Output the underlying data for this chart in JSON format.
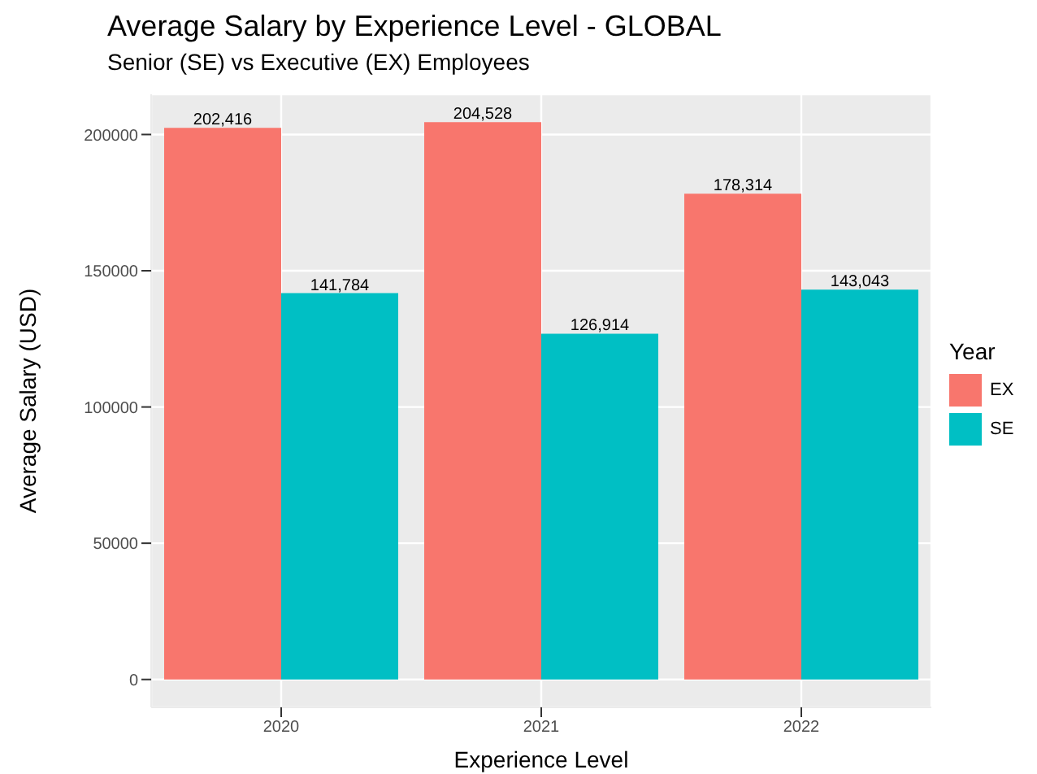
{
  "chart_data": {
    "type": "bar",
    "title": "Average Salary by Experience Level - GLOBAL",
    "subtitle": "Senior (SE) vs Executive (EX) Employees",
    "xlabel": "Experience Level",
    "ylabel": "Average Salary (USD)",
    "legend_title": "Year",
    "categories": [
      "2020",
      "2021",
      "2022"
    ],
    "series": [
      {
        "name": "EX",
        "color": "#f8766d",
        "values": [
          202416,
          204528,
          178314
        ],
        "value_labels": [
          "202,416",
          "204,528",
          "178,314"
        ]
      },
      {
        "name": "SE",
        "color": "#00bfc4",
        "values": [
          141784,
          126914,
          143043
        ],
        "value_labels": [
          "141,784",
          "126,914",
          "143,043"
        ]
      }
    ],
    "ylim": [
      -10226,
      214754
    ],
    "yticks": [
      0,
      50000,
      100000,
      150000,
      200000
    ],
    "grid": true,
    "legend": "right"
  }
}
